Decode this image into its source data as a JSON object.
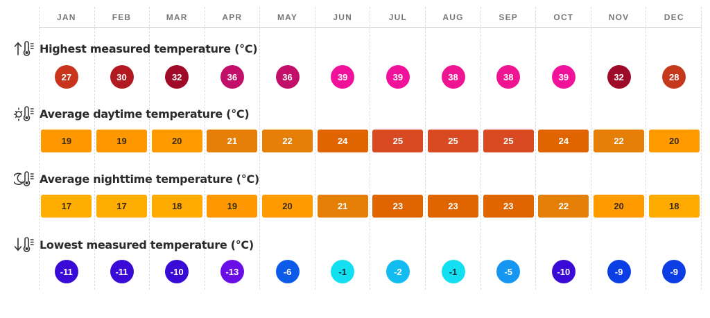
{
  "months": [
    "JAN",
    "FEB",
    "MAR",
    "APR",
    "MAY",
    "JUN",
    "JUL",
    "AUG",
    "SEP",
    "OCT",
    "NOV",
    "DEC"
  ],
  "sections": {
    "highest": {
      "title": "Highest measured temperature (°C)",
      "icon": "arrow-up-thermometer-icon",
      "values": [
        "27",
        "30",
        "32",
        "36",
        "36",
        "39",
        "39",
        "38",
        "38",
        "39",
        "32",
        "28"
      ],
      "colors": [
        "#c8351c",
        "#b01a20",
        "#9e0a28",
        "#c2106a",
        "#c2106a",
        "#f0129a",
        "#f0129a",
        "#ef1492",
        "#ef1492",
        "#f0129a",
        "#9e0a28",
        "#c5381c"
      ],
      "text_colors": [
        "#ffffff",
        "#ffffff",
        "#ffffff",
        "#ffffff",
        "#ffffff",
        "#ffffff",
        "#ffffff",
        "#ffffff",
        "#ffffff",
        "#ffffff",
        "#ffffff",
        "#ffffff"
      ]
    },
    "daytime": {
      "title": "Average daytime temperature (°C)",
      "icon": "sun-thermometer-icon",
      "values": [
        "19",
        "19",
        "20",
        "21",
        "22",
        "24",
        "25",
        "25",
        "25",
        "24",
        "22",
        "20"
      ],
      "colors": [
        "#ff9800",
        "#ff9800",
        "#ff9a00",
        "#e57f08",
        "#e57f08",
        "#e06500",
        "#da4a22",
        "#da4a22",
        "#da4a22",
        "#e06500",
        "#e57f08",
        "#ff9a00"
      ],
      "text_colors": [
        "#3a2a10",
        "#3a2a10",
        "#3a2a10",
        "#ffffff",
        "#ffffff",
        "#ffffff",
        "#ffffff",
        "#ffffff",
        "#ffffff",
        "#ffffff",
        "#ffffff",
        "#3a2a10"
      ]
    },
    "nighttime": {
      "title": "Average nighttime temperature (°C)",
      "icon": "moon-thermometer-icon",
      "values": [
        "17",
        "17",
        "18",
        "19",
        "20",
        "21",
        "23",
        "23",
        "23",
        "22",
        "20",
        "18"
      ],
      "colors": [
        "#ffad00",
        "#ffad00",
        "#ffaa00",
        "#ff9800",
        "#ff9a00",
        "#e57f08",
        "#e06500",
        "#e06500",
        "#e06500",
        "#e57f08",
        "#ff9a00",
        "#ffaa00"
      ],
      "text_colors": [
        "#3a2a10",
        "#3a2a10",
        "#3a2a10",
        "#3a2a10",
        "#3a2a10",
        "#ffffff",
        "#ffffff",
        "#ffffff",
        "#ffffff",
        "#ffffff",
        "#3a2a10",
        "#3a2a10"
      ]
    },
    "lowest": {
      "title": "Lowest measured temperature (°C)",
      "icon": "arrow-down-thermometer-icon",
      "values": [
        "-11",
        "-11",
        "-10",
        "-13",
        "-6",
        "-1",
        "-2",
        "-1",
        "-5",
        "-10",
        "-9",
        "-9"
      ],
      "colors": [
        "#3a0ad6",
        "#3a0ad6",
        "#3a0ad6",
        "#6a0ee8",
        "#0c5ae8",
        "#12e0f0",
        "#12bcf0",
        "#12e0f0",
        "#1596f0",
        "#3a0ad6",
        "#0c3ee6",
        "#0c3ee6"
      ],
      "text_colors": [
        "#ffffff",
        "#ffffff",
        "#ffffff",
        "#ffffff",
        "#ffffff",
        "#1a2a3a",
        "#ffffff",
        "#1a2a3a",
        "#ffffff",
        "#ffffff",
        "#ffffff",
        "#ffffff"
      ]
    }
  },
  "chart_data": {
    "type": "table",
    "title": "Monthly temperature climate table",
    "categories": [
      "JAN",
      "FEB",
      "MAR",
      "APR",
      "MAY",
      "JUN",
      "JUL",
      "AUG",
      "SEP",
      "OCT",
      "NOV",
      "DEC"
    ],
    "series": [
      {
        "name": "Highest measured temperature (°C)",
        "values": [
          27,
          30,
          32,
          36,
          36,
          39,
          39,
          38,
          38,
          39,
          32,
          28
        ]
      },
      {
        "name": "Average daytime temperature (°C)",
        "values": [
          19,
          19,
          20,
          21,
          22,
          24,
          25,
          25,
          25,
          24,
          22,
          20
        ]
      },
      {
        "name": "Average nighttime temperature (°C)",
        "values": [
          17,
          17,
          18,
          19,
          20,
          21,
          23,
          23,
          23,
          22,
          20,
          18
        ]
      },
      {
        "name": "Lowest measured temperature (°C)",
        "values": [
          -11,
          -11,
          -10,
          -13,
          -6,
          -1,
          -2,
          -1,
          -5,
          -10,
          -9,
          -9
        ]
      }
    ],
    "xlabel": "",
    "ylabel": "°C",
    "grid": true
  }
}
